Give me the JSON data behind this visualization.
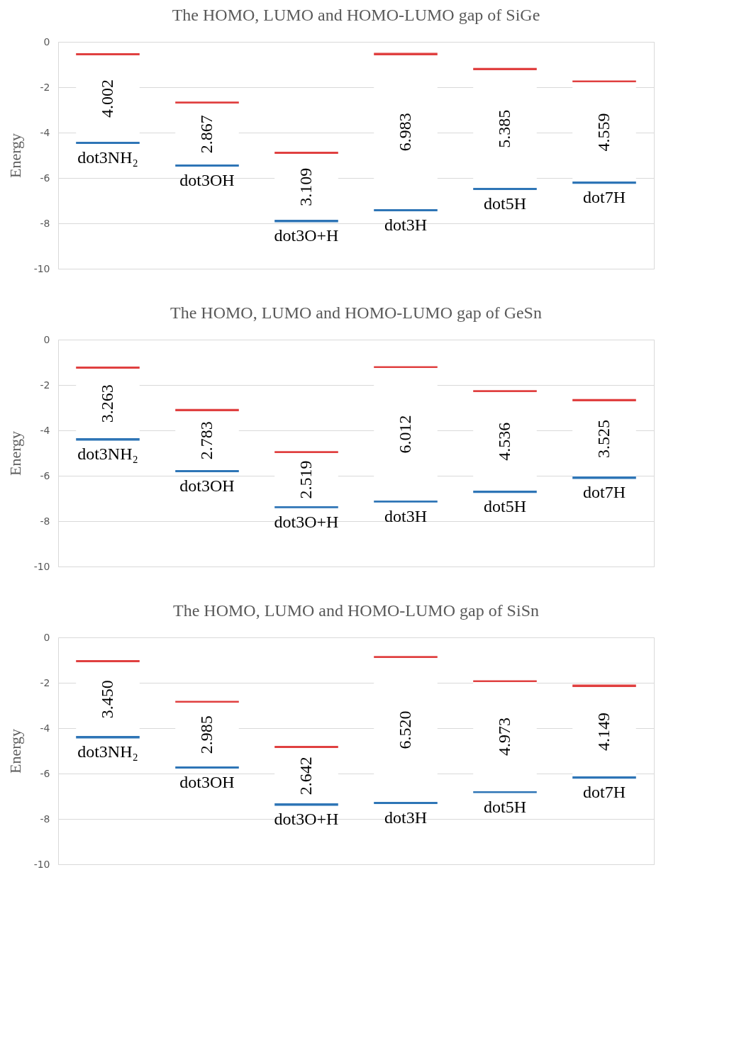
{
  "chart_data": [
    {
      "type": "bar",
      "title": "The HOMO, LUMO and HOMO-LUMO gap of SiGe",
      "ylabel": "Energy",
      "categories": [
        null,
        null,
        null,
        null,
        null,
        null
      ],
      "series": [
        {
          "color": "#2e75b6",
          "colors": [
            "#e04040",
            "#e04040",
            "#e04040",
            "#e04040",
            "#e04040",
            "#e04040"
          ],
          "base": [
            -4.5,
            -5.5,
            -7.95,
            -7.47,
            -6.53,
            -6.26
          ],
          "values": [
            4.002,
            2.867,
            3.109,
            6.983,
            5.385,
            4.559
          ],
          "value_labels": [
            "4.002",
            "2.867",
            "3.109",
            "6.983",
            "5.385",
            "4.559"
          ]
        }
      ],
      "annotations": [
        "dot3NH₂",
        "dot3OH",
        "dot3O+H",
        "dot3H",
        "dot5H",
        "dot7H"
      ],
      "ylim": [
        -10,
        0
      ],
      "yticks": [
        0,
        -2,
        -4,
        -6,
        -8,
        -10
      ],
      "grid": "y",
      "tick_labels": "y"
    },
    {
      "type": "bar",
      "title": "The HOMO, LUMO and HOMO-LUMO gap of GeSn",
      "ylabel": "Energy",
      "categories": [
        null,
        null,
        null,
        null,
        null,
        null
      ],
      "series": [
        {
          "color": "#2e75b6",
          "colors": [
            "#e04040",
            "#e04040",
            "#e04040",
            "#e04040",
            "#e04040",
            "#e04040"
          ],
          "base": [
            -4.45,
            -5.84,
            -7.43,
            -7.18,
            -6.76,
            -6.14
          ],
          "values": [
            3.263,
            2.783,
            2.519,
            6.012,
            4.536,
            3.525
          ],
          "value_labels": [
            "3.263",
            "2.783",
            "2.519",
            "6.012",
            "4.536",
            "3.525"
          ]
        }
      ],
      "annotations": [
        "dot3NH₂",
        "dot3OH",
        "dot3O+H",
        "dot3H",
        "dot5H",
        "dot7H"
      ],
      "ylim": [
        -10,
        0
      ],
      "yticks": [
        0,
        -2,
        -4,
        -6,
        -8,
        -10
      ],
      "grid": "y",
      "tick_labels": "y"
    },
    {
      "type": "bar",
      "title": "The HOMO, LUMO and HOMO-LUMO gap of SiSn",
      "ylabel": "Energy",
      "categories": [
        null,
        null,
        null,
        null,
        null,
        null
      ],
      "series": [
        {
          "color": "#2e75b6",
          "colors": [
            "#e04040",
            "#e04040",
            "#e04040",
            "#e04040",
            "#e04040",
            "#e04040"
          ],
          "base": [
            -4.45,
            -5.78,
            -7.42,
            -7.34,
            -6.86,
            -6.23
          ],
          "values": [
            3.45,
            2.985,
            2.642,
            6.52,
            4.973,
            4.149
          ],
          "value_labels": [
            "3.450",
            "2.985",
            "2.642",
            "6.520",
            "4.973",
            "4.149"
          ]
        }
      ],
      "annotations": [
        "dot3NH₂",
        "dot3OH",
        "dot3O+H",
        "dot3H",
        "dot5H",
        "dot7H"
      ],
      "ylim": [
        -10,
        0
      ],
      "yticks": [
        0,
        -2,
        -4,
        -6,
        -8,
        -10
      ],
      "grid": "y",
      "tick_labels": "y"
    }
  ]
}
